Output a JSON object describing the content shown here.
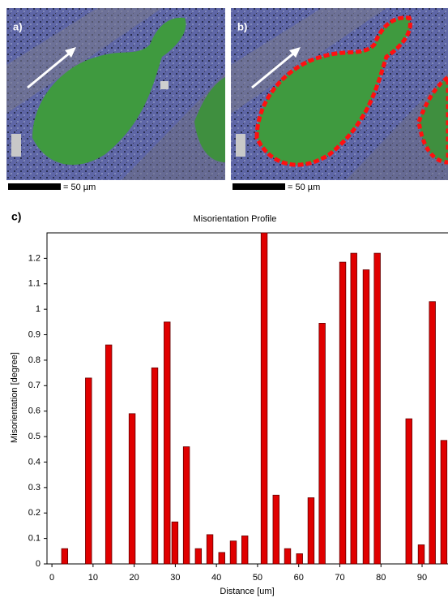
{
  "panels": [
    {
      "label": "a)",
      "scale_label": "= 50 µm"
    },
    {
      "label": "b)",
      "scale_label": "= 50 µm"
    }
  ],
  "chart_data": {
    "type": "bar",
    "panel_label": "c)",
    "title": "Misorientation Profile",
    "x_label": "Distance [um]",
    "y_label": "Misorientation [degree]",
    "x": [
      3.1,
      8.9,
      13.8,
      19.5,
      25.0,
      28.0,
      29.9,
      32.7,
      35.6,
      38.4,
      41.3,
      44.1,
      46.9,
      51.6,
      54.5,
      57.3,
      60.2,
      63.0,
      65.7,
      70.7,
      73.4,
      76.4,
      79.1,
      86.8,
      89.8,
      92.5,
      95.3
    ],
    "values": [
      0.06,
      0.73,
      0.86,
      0.59,
      0.77,
      0.95,
      0.165,
      0.46,
      0.06,
      0.115,
      0.045,
      0.09,
      0.11,
      1.3,
      0.27,
      0.06,
      0.04,
      0.26,
      0.945,
      1.185,
      1.22,
      1.155,
      1.22,
      0.57,
      0.075,
      1.03,
      0.485
    ],
    "color": "#e00000",
    "xlim": [
      -1.2,
      96.3
    ],
    "ylim": [
      0,
      1.3
    ],
    "xticks": [
      0,
      10,
      20,
      30,
      40,
      50,
      60,
      70,
      80,
      90
    ],
    "yticks": [
      0,
      0.1,
      0.2,
      0.3,
      0.4,
      0.5,
      0.6,
      0.7,
      0.8,
      0.9,
      1,
      1.1,
      1.2
    ]
  }
}
